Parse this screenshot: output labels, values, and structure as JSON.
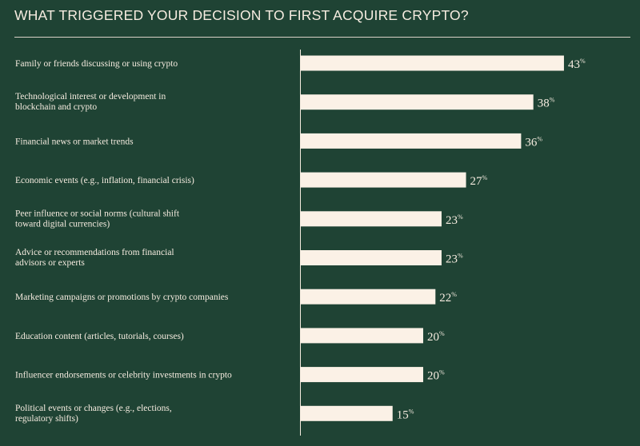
{
  "header": {
    "title": "WHAT TRIGGERED YOUR DECISION TO FIRST ACQUIRE CRYPTO?"
  },
  "colors": {
    "background": "#1f4334",
    "bar": "#fbf1e6",
    "text": "#f6ece0"
  },
  "chart_data": {
    "type": "bar",
    "orientation": "horizontal",
    "title": "WHAT TRIGGERED YOUR DECISION TO FIRST ACQUIRE CRYPTO?",
    "value_suffix": "%",
    "xlim": [
      0,
      60
    ],
    "grid": false,
    "legend": "none",
    "categories": [
      [
        "Family or friends discussing or using crypto"
      ],
      [
        "Technological interest or development in",
        "blockchain and crypto"
      ],
      [
        "Financial news or market trends"
      ],
      [
        "Economic events (e.g., inflation, financial crisis)"
      ],
      [
        "Peer influence or social norms (cultural shift",
        "toward digital currencies)"
      ],
      [
        "Advice or recommendations from financial",
        "advisors or experts"
      ],
      [
        "Marketing campaigns or promotions by crypto companies"
      ],
      [
        "Education content (articles, tutorials, courses)"
      ],
      [
        "Influencer endorsements or celebrity investments in crypto"
      ],
      [
        "Political events or changes (e.g., elections,",
        "regulatory shifts)"
      ]
    ],
    "values": [
      43,
      38,
      36,
      27,
      23,
      23,
      22,
      20,
      20,
      15
    ]
  }
}
